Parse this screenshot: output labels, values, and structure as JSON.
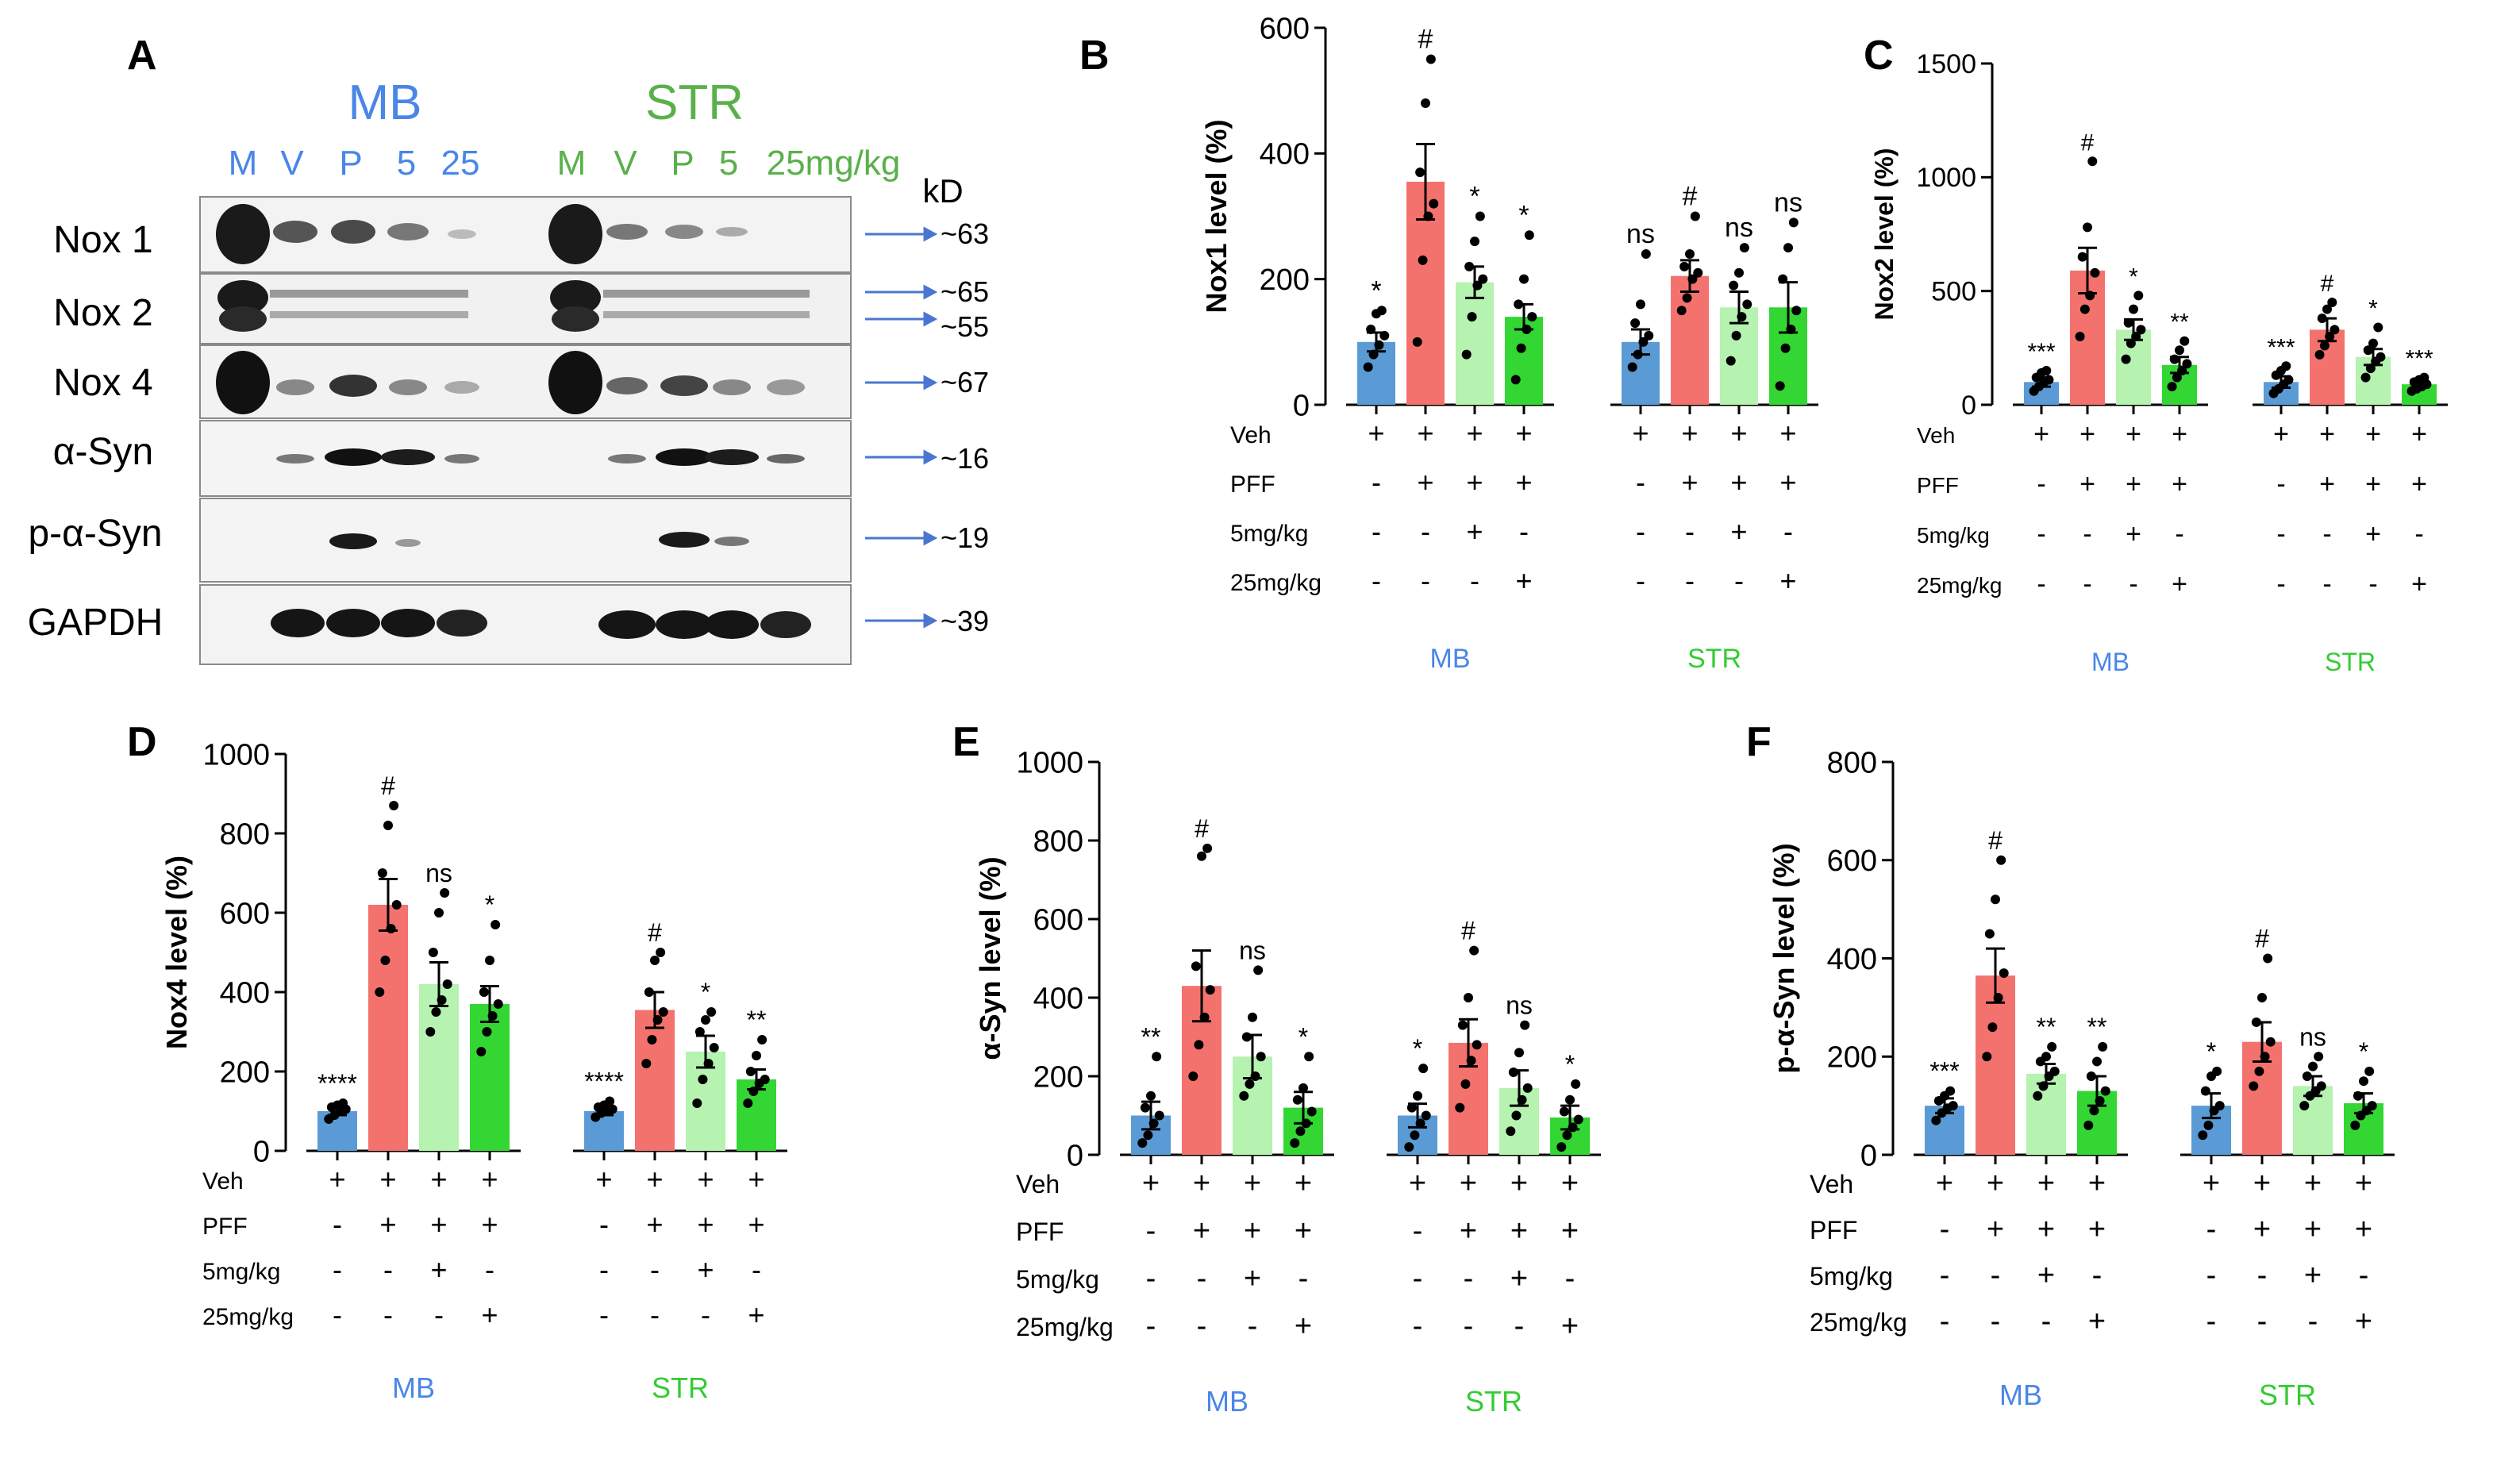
{
  "panel_letters": [
    "A",
    "B",
    "C",
    "D",
    "E",
    "F"
  ],
  "blot": {
    "region_mb": "MB",
    "region_str": "STR",
    "lanes_mb": [
      "M",
      "V",
      "P",
      "5",
      "25"
    ],
    "lanes_str": [
      "M",
      "V",
      "P",
      "5",
      "25mg/kg"
    ],
    "kd_label": "kD",
    "rows": [
      {
        "label": "Nox 1",
        "markers": [
          "~63"
        ]
      },
      {
        "label": "Nox 2",
        "markers": [
          "~65",
          "~55"
        ]
      },
      {
        "label": "Nox 4",
        "markers": [
          "~67"
        ]
      },
      {
        "label": "α-Syn",
        "markers": [
          "~16"
        ]
      },
      {
        "label": "p-α-Syn",
        "markers": [
          "~19"
        ]
      },
      {
        "label": "GAPDH",
        "markers": [
          "~39"
        ]
      }
    ]
  },
  "treatment_table": {
    "rows": [
      "Veh",
      "PFF",
      "5mg/kg",
      "25mg/kg"
    ],
    "signs": [
      [
        "+",
        "+",
        "+",
        "+"
      ],
      [
        "-",
        "+",
        "+",
        "+"
      ],
      [
        "-",
        "-",
        "+",
        "-"
      ],
      [
        "-",
        "-",
        "-",
        "+"
      ]
    ]
  },
  "colors": {
    "veh": "#5b9bd5",
    "pff": "#f4726e",
    "low": "#b6f2b0",
    "high": "#33d633",
    "mb_text": "#4a86e8",
    "str_text": "#33cc33"
  },
  "chart_data": [
    {
      "type": "bar",
      "panel": "B",
      "ylabel": "Nox1 level (%)",
      "ylim": [
        0,
        600
      ],
      "yticks": [
        0,
        200,
        400,
        600
      ],
      "groups": [
        "MB",
        "STR"
      ],
      "series": [
        {
          "name": "Veh",
          "values": [
            100,
            100
          ],
          "err": [
            15,
            20
          ]
        },
        {
          "name": "PFF",
          "values": [
            355,
            205
          ],
          "err": [
            60,
            25
          ]
        },
        {
          "name": "PFF+5mg/kg",
          "values": [
            195,
            155
          ],
          "err": [
            25,
            25
          ]
        },
        {
          "name": "PFF+25mg/kg",
          "values": [
            140,
            155
          ],
          "err": [
            20,
            40
          ]
        }
      ],
      "points": [
        [
          [
            60,
            80,
            95,
            110,
            120,
            145,
            150
          ],
          [
            100,
            230,
            300,
            320,
            370,
            480,
            550
          ],
          [
            80,
            140,
            190,
            200,
            220,
            260,
            300
          ],
          [
            40,
            90,
            120,
            140,
            160,
            200,
            270
          ]
        ],
        [
          [
            60,
            80,
            100,
            110,
            130,
            160,
            240
          ],
          [
            150,
            170,
            200,
            210,
            220,
            240,
            300
          ],
          [
            70,
            110,
            140,
            160,
            190,
            210,
            250
          ],
          [
            30,
            90,
            120,
            150,
            200,
            250,
            290
          ]
        ]
      ],
      "sig": [
        [
          "*",
          "#",
          "*",
          "*"
        ],
        [
          "ns",
          "#",
          "ns",
          "ns"
        ]
      ]
    },
    {
      "type": "bar",
      "panel": "C",
      "ylabel": "Nox2 level (%)",
      "ylim": [
        0,
        1500
      ],
      "yticks": [
        0,
        500,
        1000,
        1500
      ],
      "groups": [
        "MB",
        "STR"
      ],
      "series": [
        {
          "name": "Veh",
          "values": [
            100,
            100
          ],
          "err": [
            20,
            25
          ]
        },
        {
          "name": "PFF",
          "values": [
            590,
            330
          ],
          "err": [
            100,
            50
          ]
        },
        {
          "name": "PFF+5mg/kg",
          "values": [
            330,
            210
          ],
          "err": [
            45,
            35
          ]
        },
        {
          "name": "PFF+25mg/kg",
          "values": [
            175,
            90
          ],
          "err": [
            35,
            15
          ]
        }
      ],
      "points": [
        [
          [
            60,
            80,
            100,
            110,
            120,
            140,
            150
          ],
          [
            300,
            420,
            480,
            580,
            650,
            780,
            1070
          ],
          [
            200,
            270,
            300,
            330,
            360,
            420,
            480
          ],
          [
            80,
            120,
            150,
            180,
            200,
            240,
            280
          ]
        ],
        [
          [
            50,
            70,
            90,
            110,
            130,
            150,
            170
          ],
          [
            220,
            260,
            300,
            330,
            380,
            420,
            450
          ],
          [
            120,
            160,
            190,
            210,
            240,
            270,
            340
          ],
          [
            60,
            70,
            80,
            90,
            100,
            110,
            120
          ]
        ]
      ],
      "sig": [
        [
          "***",
          "#",
          "*",
          "**"
        ],
        [
          "***",
          "#",
          "*",
          "***"
        ]
      ]
    },
    {
      "type": "bar",
      "panel": "D",
      "ylabel": "Nox4 level (%)",
      "ylim": [
        0,
        1000
      ],
      "yticks": [
        0,
        200,
        400,
        600,
        800,
        1000
      ],
      "groups": [
        "MB",
        "STR"
      ],
      "series": [
        {
          "name": "Veh",
          "values": [
            100,
            100
          ],
          "err": [
            10,
            10
          ]
        },
        {
          "name": "PFF",
          "values": [
            620,
            355
          ],
          "err": [
            65,
            45
          ]
        },
        {
          "name": "PFF+5mg/kg",
          "values": [
            420,
            250
          ],
          "err": [
            55,
            40
          ]
        },
        {
          "name": "PFF+25mg/kg",
          "values": [
            370,
            180
          ],
          "err": [
            45,
            25
          ]
        }
      ],
      "points": [
        [
          [
            80,
            90,
            100,
            105,
            110,
            115,
            120
          ],
          [
            400,
            480,
            560,
            620,
            700,
            820,
            870
          ],
          [
            300,
            350,
            380,
            420,
            500,
            600,
            650
          ],
          [
            250,
            300,
            340,
            370,
            400,
            480,
            570
          ]
        ],
        [
          [
            85,
            95,
            100,
            105,
            110,
            115,
            125
          ],
          [
            220,
            280,
            330,
            350,
            400,
            480,
            500
          ],
          [
            120,
            180,
            220,
            260,
            300,
            330,
            350
          ],
          [
            120,
            150,
            170,
            180,
            200,
            240,
            280
          ]
        ]
      ],
      "sig": [
        [
          "****",
          "#",
          "ns",
          "*"
        ],
        [
          "****",
          "#",
          "*",
          "**"
        ]
      ]
    },
    {
      "type": "bar",
      "panel": "E",
      "ylabel": "α-Syn level (%)",
      "ylim": [
        0,
        1000
      ],
      "yticks": [
        0,
        200,
        400,
        600,
        800,
        1000
      ],
      "groups": [
        "MB",
        "STR"
      ],
      "series": [
        {
          "name": "Veh",
          "values": [
            100,
            100
          ],
          "err": [
            35,
            30
          ]
        },
        {
          "name": "PFF",
          "values": [
            430,
            285
          ],
          "err": [
            90,
            60
          ]
        },
        {
          "name": "PFF+5mg/kg",
          "values": [
            250,
            170
          ],
          "err": [
            55,
            45
          ]
        },
        {
          "name": "PFF+25mg/kg",
          "values": [
            120,
            95
          ],
          "err": [
            40,
            30
          ]
        }
      ],
      "points": [
        [
          [
            30,
            50,
            80,
            100,
            120,
            150,
            250
          ],
          [
            200,
            280,
            350,
            420,
            480,
            760,
            780
          ],
          [
            150,
            180,
            200,
            250,
            300,
            350,
            470
          ],
          [
            30,
            60,
            80,
            110,
            140,
            170,
            250
          ]
        ],
        [
          [
            20,
            50,
            80,
            100,
            120,
            150,
            220
          ],
          [
            120,
            180,
            240,
            280,
            330,
            400,
            520
          ],
          [
            60,
            100,
            140,
            170,
            210,
            260,
            330
          ],
          [
            20,
            50,
            70,
            90,
            110,
            140,
            180
          ]
        ]
      ],
      "sig": [
        [
          "**",
          "#",
          "ns",
          "*"
        ],
        [
          "*",
          "#",
          "ns",
          "*"
        ]
      ]
    },
    {
      "type": "bar",
      "panel": "F",
      "ylabel": "p-α-Syn level (%)",
      "ylim": [
        0,
        800
      ],
      "yticks": [
        0,
        200,
        400,
        600,
        800
      ],
      "groups": [
        "MB",
        "STR"
      ],
      "series": [
        {
          "name": "Veh",
          "values": [
            100,
            100
          ],
          "err": [
            15,
            25
          ]
        },
        {
          "name": "PFF",
          "values": [
            365,
            230
          ],
          "err": [
            55,
            40
          ]
        },
        {
          "name": "PFF+5mg/kg",
          "values": [
            165,
            140
          ],
          "err": [
            20,
            20
          ]
        },
        {
          "name": "PFF+25mg/kg",
          "values": [
            130,
            105
          ],
          "err": [
            30,
            20
          ]
        }
      ],
      "points": [
        [
          [
            70,
            85,
            95,
            100,
            110,
            120,
            130
          ],
          [
            200,
            260,
            320,
            370,
            450,
            520,
            600
          ],
          [
            120,
            140,
            160,
            170,
            190,
            200,
            220
          ],
          [
            60,
            90,
            110,
            130,
            160,
            190,
            220
          ]
        ],
        [
          [
            40,
            60,
            90,
            100,
            130,
            160,
            170
          ],
          [
            140,
            170,
            200,
            230,
            270,
            320,
            400
          ],
          [
            100,
            120,
            130,
            140,
            160,
            180,
            200
          ],
          [
            60,
            80,
            90,
            100,
            120,
            150,
            170
          ]
        ]
      ],
      "sig": [
        [
          "***",
          "#",
          "**",
          "**"
        ],
        [
          "*",
          "#",
          "ns",
          "*"
        ]
      ]
    }
  ]
}
